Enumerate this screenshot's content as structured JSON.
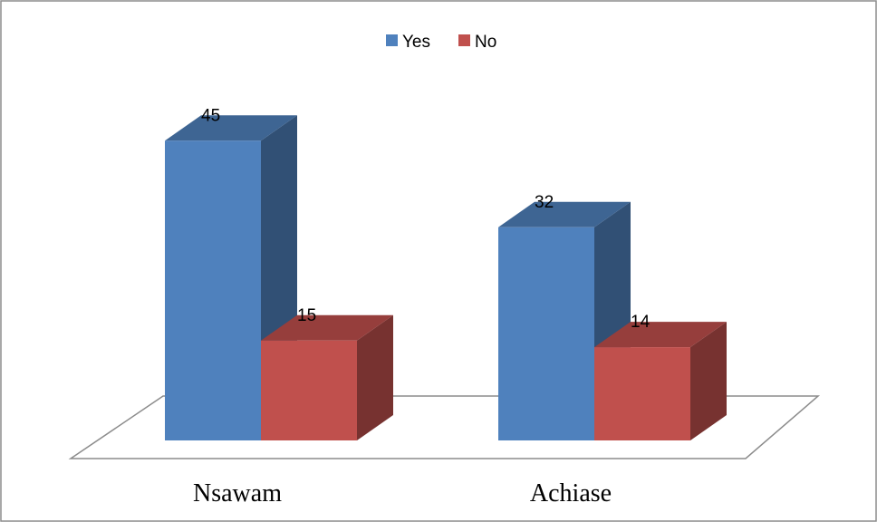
{
  "chart_data": {
    "type": "bar",
    "categories": [
      "Nsawam",
      "Achiase"
    ],
    "series": [
      {
        "name": "Yes",
        "values": [
          45,
          32
        ],
        "color": "#4F81BD"
      },
      {
        "name": "No",
        "values": [
          15,
          14
        ],
        "color": "#C0504D"
      }
    ],
    "data_labels": true,
    "legend_position": "top",
    "three_d": true,
    "grid": false,
    "ylim": [
      0,
      50
    ]
  }
}
